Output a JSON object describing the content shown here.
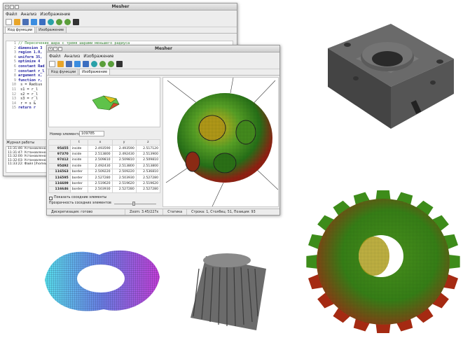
{
  "back_window": {
    "title": "Mesher",
    "menu": [
      "Файл",
      "Анализ",
      "Изображение"
    ],
    "tabs": [
      "Код функции",
      "Изображение"
    ],
    "code_lines": [
      {
        "n": "1",
        "t": "// Пересечение шара с тремя шарами меньшего радиуса"
      },
      {
        "n": "2",
        "t": "dimension 3"
      },
      {
        "n": "3",
        "t": "region 1.0,"
      },
      {
        "n": "4",
        "t": "uniform 35,"
      },
      {
        "n": "5",
        "t": "optimize 4"
      },
      {
        "n": "6",
        "t": "constant Rad"
      },
      {
        "n": "7",
        "t": "constant r_l"
      },
      {
        "n": "8",
        "t": "argument x,"
      },
      {
        "n": "9",
        "t": "function r,"
      },
      {
        "n": "10",
        "t": "  s = Radius"
      },
      {
        "n": "11",
        "t": "  s1 = r_l"
      },
      {
        "n": "12",
        "t": "  s2 = r_l"
      },
      {
        "n": "13",
        "t": "  s3 = r_l"
      },
      {
        "n": "14",
        "t": "  r = s &"
      },
      {
        "n": "15",
        "t": "return r"
      }
    ],
    "log_title": "Журнал работы",
    "log_lines": [
      "11:31:46: Установлено нач",
      "11:31:47: Установлено нач",
      "11:32:00: Установлено нач",
      "11:32:03: Установлено нач",
      "11:33:22: Файл [/home/m"
    ]
  },
  "front_window": {
    "title": "Mesher",
    "menu": [
      "Файл",
      "Анализ",
      "Изображение"
    ],
    "tabs": [
      "Код функции",
      "Изображение"
    ],
    "element_label": "Номер элемента:",
    "element_value": "109785",
    "table_headers": [
      "",
      "t",
      "x",
      "y",
      "z"
    ],
    "table_rows": [
      [
        "95455",
        "inside",
        "2.493590",
        "2.493590",
        "2.517120"
      ],
      [
        "97370",
        "inside",
        "2.513800",
        "2.492430",
        "2.513900"
      ],
      [
        "97412",
        "inside",
        "2.509810",
        "2.509810",
        "2.509810"
      ],
      [
        "95492",
        "inside",
        "2.492430",
        "2.513800",
        "2.513800"
      ],
      [
        "116563",
        "border",
        "2.509220",
        "2.509220",
        "2.536810"
      ],
      [
        "116595",
        "border",
        "2.527280",
        "2.503930",
        "2.527280"
      ],
      [
        "116609",
        "border",
        "2.519620",
        "2.519620",
        "2.519620"
      ],
      [
        "116646",
        "border",
        "2.503930",
        "2.527280",
        "2.527280"
      ]
    ],
    "show_neighbors": "Показать соседние элементы",
    "transparency_label": "Прозрачность соседних элементов",
    "status": [
      "Дискретизация: готово",
      "Zoom: 3.45/227x",
      "Статика",
      "Строка: 1, Столбец: 51, Позиция: 93"
    ]
  },
  "colors": {
    "accent_green": "#2e8b2e",
    "accent_red": "#c0281e",
    "gear_gray": "#5a5a5a",
    "torus_cyan": "#4fd6e8",
    "torus_purple": "#b23cd6"
  }
}
